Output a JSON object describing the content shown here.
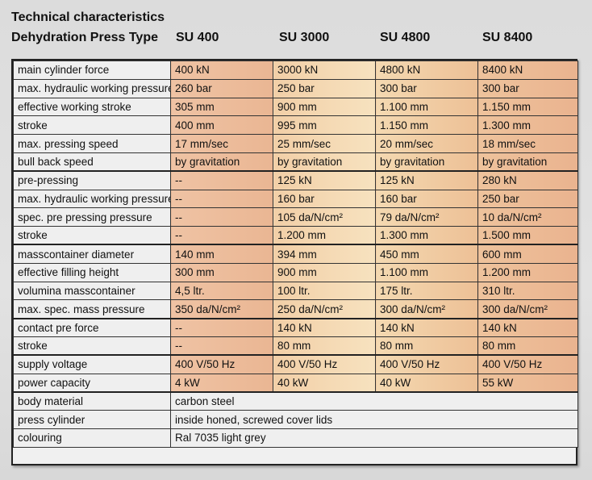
{
  "header": {
    "title": "Technical characteristics",
    "subtitle": "Dehydration Press Type",
    "columns": [
      "SU 400",
      "SU 3000",
      "SU 4800",
      "SU 8400"
    ]
  },
  "table": {
    "rows": [
      {
        "label": "main cylinder force",
        "values": [
          "400 kN",
          "3000 kN",
          "4800 kN",
          "8400 kN"
        ]
      },
      {
        "label": "max. hydraulic working pressure",
        "values": [
          "260 bar",
          "250 bar",
          "300 bar",
          "300 bar"
        ]
      },
      {
        "label": "effective working stroke",
        "values": [
          "305 mm",
          "900 mm",
          "1.100 mm",
          "1.150 mm"
        ]
      },
      {
        "label": "stroke",
        "values": [
          "400 mm",
          "995 mm",
          "1.150 mm",
          "1.300 mm"
        ]
      },
      {
        "label": "max. pressing speed",
        "values": [
          "17 mm/sec",
          "25 mm/sec",
          "20 mm/sec",
          "18 mm/sec"
        ]
      },
      {
        "label": "bull back speed",
        "values": [
          "by gravitation",
          "by gravitation",
          "by gravitation",
          "by gravitation"
        ]
      },
      {
        "label": "pre-pressing",
        "values": [
          "--",
          "125 kN",
          "125 kN",
          "280 kN"
        ],
        "sep": true
      },
      {
        "label": "max. hydraulic working pressure",
        "values": [
          "--",
          "160 bar",
          "160 bar",
          "250 bar"
        ]
      },
      {
        "label": "spec. pre pressing pressure",
        "values": [
          "--",
          "105 da/N/cm²",
          "79 da/N/cm²",
          "10 da/N/cm²"
        ]
      },
      {
        "label": "stroke",
        "values": [
          "--",
          "1.200 mm",
          "1.300 mm",
          "1.500 mm"
        ]
      },
      {
        "label": "masscontainer diameter",
        "values": [
          "140 mm",
          "394 mm",
          "450 mm",
          "600 mm"
        ],
        "sep": true
      },
      {
        "label": "effective filling height",
        "values": [
          "300 mm",
          "900 mm",
          "1.100 mm",
          "1.200 mm"
        ]
      },
      {
        "label": "volumina masscontainer",
        "values": [
          "4,5 ltr.",
          "100 ltr.",
          "175 ltr.",
          "310 ltr."
        ]
      },
      {
        "label": "max. spec. mass pressure",
        "values": [
          "350 da/N/cm²",
          "250 da/N/cm²",
          "300 da/N/cm²",
          "300 da/N/cm²"
        ]
      },
      {
        "label": "contact pre force",
        "values": [
          "--",
          "140 kN",
          "140 kN",
          "140 kN"
        ],
        "sep": true
      },
      {
        "label": "stroke",
        "values": [
          "--",
          "80 mm",
          "80 mm",
          "80 mm"
        ]
      },
      {
        "label": "supply voltage",
        "values": [
          "400 V/50 Hz",
          "400 V/50 Hz",
          "400 V/50 Hz",
          "400 V/50 Hz"
        ],
        "sep": true
      },
      {
        "label": "power capacity",
        "values": [
          "4 kW",
          "40 kW",
          "40 kW",
          "55 kW"
        ]
      },
      {
        "label": "body material",
        "span": "carbon steel",
        "sep": true
      },
      {
        "label": "press cylinder",
        "span": "inside honed, screwed cover lids"
      },
      {
        "label": "colouring",
        "span": "Ral 7035 light grey"
      }
    ]
  }
}
